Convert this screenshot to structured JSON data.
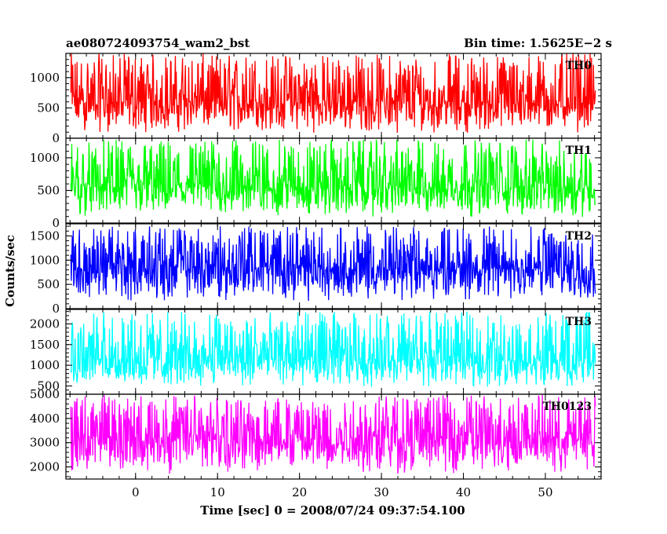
{
  "header": {
    "title": "ae080724093754_wam2_bst",
    "bin_time": "Bin time: 1.5625E−2 s"
  },
  "chart_data": {
    "type": "line",
    "title": "ae080724093754_wam2_bst",
    "xlabel": "Time [sec] 0 = 2008/07/24 09:37:54.100",
    "ylabel": "Counts/sec",
    "xlim": [
      -8.5,
      56.8
    ],
    "x_ticks": [
      0,
      10,
      20,
      30,
      40,
      50
    ],
    "x_start": -7.9,
    "x_end": 56.1,
    "bin_time": 0.015625,
    "panels": [
      {
        "name": "TH0",
        "color": "#ff0000",
        "ylim": [
          0,
          1400
        ],
        "y_ticks": [
          0,
          500,
          1000
        ],
        "mean": 600,
        "noise_min": 80,
        "noise_max": 1400
      },
      {
        "name": "TH1",
        "color": "#00ff00",
        "ylim": [
          0,
          1300
        ],
        "y_ticks": [
          0,
          500,
          1000
        ],
        "mean": 560,
        "noise_min": 80,
        "noise_max": 1280
      },
      {
        "name": "TH2",
        "color": "#0000ff",
        "ylim": [
          0,
          1750
        ],
        "y_ticks": [
          0,
          500,
          1000,
          1500
        ],
        "mean": 830,
        "noise_min": 150,
        "noise_max": 1700
      },
      {
        "name": "TH3",
        "color": "#00ffff",
        "ylim": [
          300,
          2350
        ],
        "y_ticks": [
          500,
          1000,
          1500,
          2000
        ],
        "mean": 1150,
        "noise_min": 450,
        "noise_max": 2300
      },
      {
        "name": "TH0123",
        "color": "#ff00ff",
        "ylim": [
          1500,
          5000
        ],
        "y_ticks": [
          2000,
          3000,
          4000,
          5000
        ],
        "mean": 3200,
        "noise_min": 1700,
        "noise_max": 5000
      }
    ]
  }
}
